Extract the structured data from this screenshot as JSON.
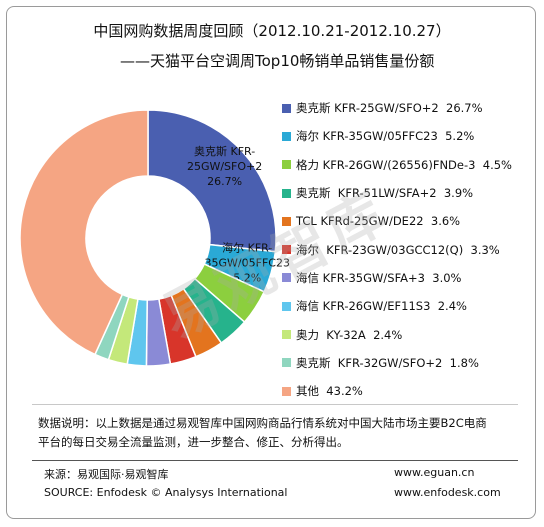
{
  "title": "中国网购数据周度回顾（2012.10.21-2012.10.27）",
  "subtitle": "——天猫平台空调周Top10畅销单品销售量份额",
  "chart_data": {
    "type": "pie",
    "style": "donut",
    "legend_position": "right",
    "slices": [
      {
        "name": "奥克斯 KFR-25GW/SFO+2",
        "value": 26.7,
        "label": "26.7%",
        "color": "#4a5fb0",
        "data_label": [
          "奥克斯 KFR-",
          "25GW/SFO+2",
          "26.7%"
        ]
      },
      {
        "name": "海尔 KFR-35GW/05FFC23",
        "value": 5.2,
        "label": "5.2%",
        "color": "#2aa9d6",
        "data_label": [
          "海尔 KFR-",
          "35GW/05FFC23",
          "5.2%"
        ]
      },
      {
        "name": "格力 KFR-26GW/(26556)FNDe-3",
        "value": 4.5,
        "label": "4.5%",
        "color": "#8ccf3e",
        "data_label": []
      },
      {
        "name": "奥克斯  KFR-51LW/SFA+2",
        "value": 3.9,
        "label": "3.9%",
        "color": "#26b38c",
        "data_label": []
      },
      {
        "name": "TCL KFRd-25GW/DE22",
        "value": 3.6,
        "label": "3.6%",
        "color": "#e3741e",
        "data_label": []
      },
      {
        "name": "海尔  KFR-23GW/03GCC12(Q)",
        "value": 3.3,
        "label": "3.3%",
        "color": "#d8352a",
        "data_label": []
      },
      {
        "name": "海信 KFR-35GW/SFA+3",
        "value": 3.0,
        "label": "3.0%",
        "color": "#8a8ad6",
        "data_label": []
      },
      {
        "name": "海信 KFR-26GW/EF11S3",
        "value": 2.4,
        "label": "2.4%",
        "color": "#5fc6ee",
        "data_label": []
      },
      {
        "name": "奥力  KY-32A",
        "value": 2.4,
        "label": "2.4%",
        "color": "#c4e87a",
        "data_label": []
      },
      {
        "name": "奥克斯  KFR-32GW/SFO+2",
        "value": 1.8,
        "label": "1.8%",
        "color": "#8fd6bf",
        "data_label": []
      },
      {
        "name": "其他",
        "value": 43.2,
        "label": "43.2%",
        "color": "#f5a583",
        "data_label": []
      }
    ]
  },
  "note": {
    "line1": "数据说明：以上数据是通过易观智库中国网购商品行情系统对中国大陆市场主要B2C电商",
    "line2": "平台的每日交易全流量监测，进一步整合、修正、分析得出。"
  },
  "source": {
    "cn": "来源：易观国际·易观智库",
    "en": "SOURCE: Enfodesk © Analysys International",
    "web1": "www.eguan.cn",
    "web2": "www.enfodesk.com"
  },
  "watermark": "易观智库"
}
